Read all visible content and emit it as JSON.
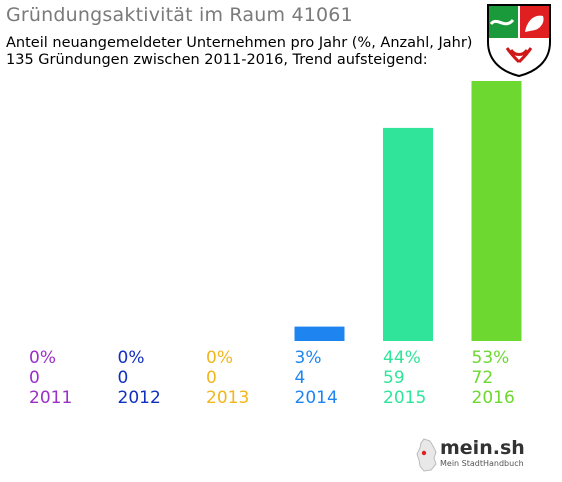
{
  "header": {
    "title": "Gründungsaktivität im Raum 41061",
    "subtitle_line1": "Anteil neuangemeldeter Unternehmen pro Jahr (%, Anzahl, Jahr)",
    "subtitle_line2": "135 Gründungen zwischen 2011-2016, Trend aufsteigend:"
  },
  "crest": {
    "icon": "nrw-coat-of-arms-icon"
  },
  "brand": {
    "name": "mein.sh",
    "tagline": "Mein StadtHandbuch",
    "icon": "germany-map-icon"
  },
  "chart_data": {
    "type": "bar",
    "categories": [
      "2011",
      "2012",
      "2013",
      "2014",
      "2015",
      "2016"
    ],
    "values": [
      0,
      0,
      0,
      4,
      59,
      72
    ],
    "percent_labels": [
      "0%",
      "0%",
      "0%",
      "3%",
      "44%",
      "53%"
    ],
    "count_labels": [
      "0",
      "0",
      "0",
      "4",
      "59",
      "72"
    ],
    "colors": [
      "#9b30c8",
      "#1030c0",
      "#f2b61e",
      "#1e85f0",
      "#30e59a",
      "#6cd830"
    ],
    "grid": false,
    "legend": "none"
  }
}
